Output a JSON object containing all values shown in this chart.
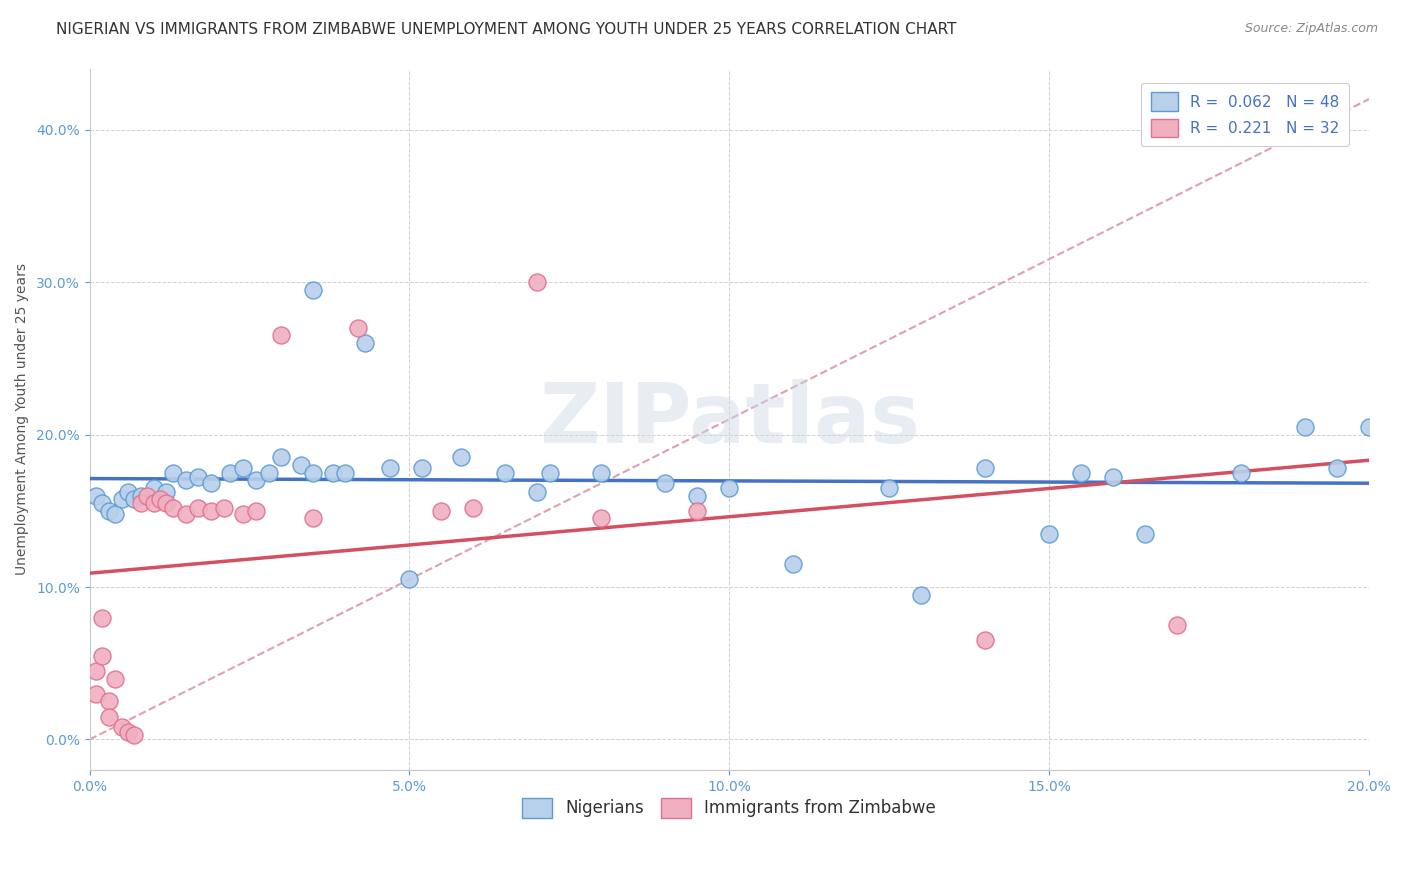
{
  "title": "NIGERIAN VS IMMIGRANTS FROM ZIMBABWE UNEMPLOYMENT AMONG YOUTH UNDER 25 YEARS CORRELATION CHART",
  "source": "Source: ZipAtlas.com",
  "ylabel": "Unemployment Among Youth under 25 years",
  "legend_labels": [
    "Nigerians",
    "Immigrants from Zimbabwe"
  ],
  "r_nigerian": 0.062,
  "n_nigerian": 48,
  "r_zimbabwe": 0.221,
  "n_zimbabwe": 32,
  "blue_fill": "#b8d0ea",
  "pink_fill": "#f0b0c0",
  "blue_edge": "#5b9bd5",
  "pink_edge": "#e07090",
  "blue_line": "#4472c4",
  "pink_line": "#d45060",
  "diagonal_color": "#e0a0b0",
  "xlim": [
    0.0,
    0.2
  ],
  "ylim": [
    -0.02,
    0.44
  ],
  "nigerian_x": [
    0.001,
    0.002,
    0.003,
    0.004,
    0.005,
    0.006,
    0.007,
    0.008,
    0.01,
    0.012,
    0.013,
    0.015,
    0.017,
    0.019,
    0.022,
    0.024,
    0.026,
    0.028,
    0.03,
    0.033,
    0.035,
    0.038,
    0.04,
    0.043,
    0.047,
    0.052,
    0.058,
    0.065,
    0.072,
    0.08,
    0.09,
    0.1,
    0.11,
    0.125,
    0.14,
    0.155,
    0.165,
    0.18,
    0.195,
    0.035,
    0.05,
    0.07,
    0.095,
    0.13,
    0.15,
    0.16,
    0.19,
    0.2
  ],
  "nigerian_y": [
    0.16,
    0.155,
    0.15,
    0.148,
    0.158,
    0.162,
    0.158,
    0.16,
    0.165,
    0.162,
    0.175,
    0.17,
    0.172,
    0.168,
    0.175,
    0.178,
    0.17,
    0.175,
    0.185,
    0.18,
    0.295,
    0.175,
    0.175,
    0.26,
    0.178,
    0.178,
    0.185,
    0.175,
    0.175,
    0.175,
    0.168,
    0.165,
    0.115,
    0.165,
    0.178,
    0.175,
    0.135,
    0.175,
    0.178,
    0.175,
    0.105,
    0.162,
    0.16,
    0.095,
    0.135,
    0.172,
    0.205,
    0.205
  ],
  "zimbabwe_x": [
    0.001,
    0.001,
    0.002,
    0.002,
    0.003,
    0.003,
    0.004,
    0.005,
    0.006,
    0.007,
    0.008,
    0.009,
    0.01,
    0.011,
    0.012,
    0.013,
    0.015,
    0.017,
    0.019,
    0.021,
    0.024,
    0.026,
    0.03,
    0.035,
    0.042,
    0.055,
    0.06,
    0.07,
    0.08,
    0.095,
    0.14,
    0.17
  ],
  "zimbabwe_y": [
    0.045,
    0.03,
    0.08,
    0.055,
    0.025,
    0.015,
    0.04,
    0.008,
    0.005,
    0.003,
    0.155,
    0.16,
    0.155,
    0.158,
    0.155,
    0.152,
    0.148,
    0.152,
    0.15,
    0.152,
    0.148,
    0.15,
    0.265,
    0.145,
    0.27,
    0.15,
    0.152,
    0.3,
    0.145,
    0.15,
    0.065,
    0.075
  ],
  "background_color": "#ffffff",
  "watermark_text": "ZIPatlas",
  "title_fontsize": 11,
  "axis_label_fontsize": 10,
  "tick_fontsize": 10,
  "legend_fontsize": 11
}
